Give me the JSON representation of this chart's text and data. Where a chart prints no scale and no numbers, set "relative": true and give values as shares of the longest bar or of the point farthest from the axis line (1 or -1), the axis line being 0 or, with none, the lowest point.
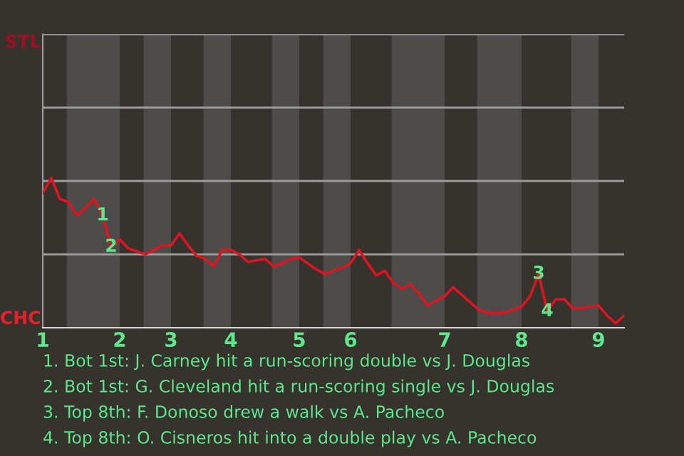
{
  "chart_data": {
    "type": "line",
    "relative": true,
    "categories": [
      "1",
      null,
      null,
      null,
      null,
      null,
      null,
      null,
      null,
      "2",
      null,
      null,
      null,
      null,
      null,
      "3",
      null,
      null,
      null,
      null,
      null,
      null,
      "4",
      null,
      null,
      null,
      null,
      null,
      null,
      null,
      "5",
      null,
      null,
      null,
      null,
      null,
      "6",
      null,
      null,
      null,
      null,
      null,
      null,
      null,
      null,
      null,
      null,
      "7",
      null,
      null,
      null,
      null,
      null,
      null,
      null,
      null,
      "8",
      null,
      null,
      null,
      null,
      null,
      null,
      null,
      null,
      "9",
      null,
      null,
      null
    ],
    "series": [
      {
        "color": "#e0141e",
        "values": [
          0.9,
          1,
          0.86,
          0.84,
          0.75,
          0.8,
          0.86,
          0.75,
          0.54,
          0.59,
          0.53,
          0.51,
          0.49,
          0.52,
          0.55,
          0.55,
          0.63,
          0.55,
          0.48,
          0.46,
          0.41,
          0.52,
          0.52,
          0.49,
          0.44,
          0.45,
          0.46,
          0.41,
          0.43,
          0.46,
          0.47,
          0.43,
          0.39,
          0.36,
          0.38,
          0.4,
          0.43,
          0.52,
          0.43,
          0.35,
          0.38,
          0.3,
          0.26,
          0.29,
          0.23,
          0.15,
          0.18,
          0.21,
          0.27,
          0.22,
          0.17,
          0.12,
          0.1,
          0.1,
          0.1,
          0.12,
          0.14,
          0.21,
          0.36,
          0.11,
          0.19,
          0.19,
          0.13,
          0.13,
          0.14,
          0.15,
          0.08,
          0.03,
          0.08
        ],
        "name": null
      }
    ],
    "ref_lines": [
      {
        "axis": "y",
        "value": 0.49,
        "color": "#9a9a9a"
      },
      {
        "axis": "y",
        "value": 0.98,
        "color": "#9a9a9a"
      },
      {
        "axis": "y",
        "value": 1.47,
        "color": "#9a9a9a"
      },
      {
        "axis": "y",
        "value": 1.96,
        "color": "#9a9a9a"
      }
    ],
    "marker": "none",
    "line_style": "solid",
    "annotations": [
      "STL",
      "CHC",
      {
        "text": "1",
        "y": 0.75
      },
      {
        "text": "2",
        "y": 0.54
      },
      {
        "text": "3",
        "y": 0.36
      },
      {
        "text": "4",
        "y": 0.11
      },
      "1. Bot 1st: J. Carney hit a run-scoring double vs J. Douglas",
      "2. Bot 1st: G. Cleveland hit a run-scoring single vs J. Douglas",
      "3. Top 8th: F. Donoso drew a walk vs A. Pacheco",
      "4. Top 8th: O. Cisneros hit into a double play vs A. Pacheco"
    ]
  }
}
